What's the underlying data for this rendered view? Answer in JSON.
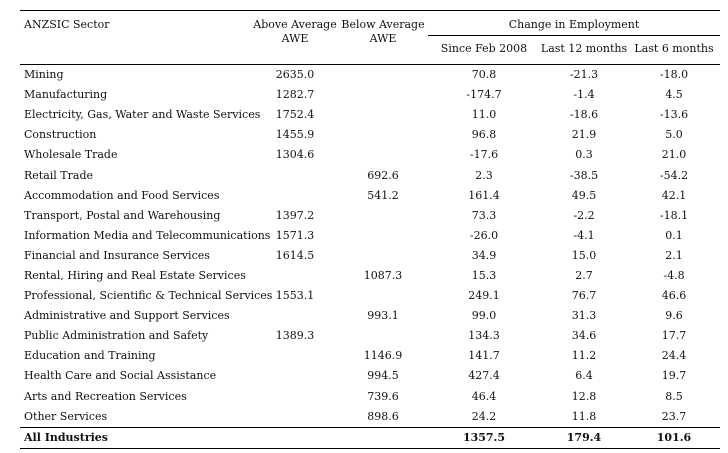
{
  "headers": {
    "sector": "ANZSIC Sector",
    "above_line1": "Above Average",
    "above_line2": "AWE",
    "below_line1": "Below Average",
    "below_line2": "AWE",
    "change": "Change in Employment",
    "since_feb": "Since Feb 2008",
    "last12": "Last 12 months",
    "last6": "Last 6 months"
  },
  "rows": [
    {
      "sector": "Mining",
      "above": "2635.0",
      "below": "",
      "feb": "70.8",
      "l12": "-21.3",
      "l6": "-18.0"
    },
    {
      "sector": "Manufacturing",
      "above": "1282.7",
      "below": "",
      "feb": "-174.7",
      "l12": "-1.4",
      "l6": "4.5"
    },
    {
      "sector": "Electricity, Gas, Water and Waste Services",
      "above": "1752.4",
      "below": "",
      "feb": "11.0",
      "l12": "-18.6",
      "l6": "-13.6"
    },
    {
      "sector": "Construction",
      "above": "1455.9",
      "below": "",
      "feb": "96.8",
      "l12": "21.9",
      "l6": "5.0"
    },
    {
      "sector": "Wholesale Trade",
      "above": "1304.6",
      "below": "",
      "feb": "-17.6",
      "l12": "0.3",
      "l6": "21.0"
    },
    {
      "sector": "Retail Trade",
      "above": "",
      "below": "692.6",
      "feb": "2.3",
      "l12": "-38.5",
      "l6": "-54.2"
    },
    {
      "sector": "Accommodation and Food Services",
      "above": "",
      "below": "541.2",
      "feb": "161.4",
      "l12": "49.5",
      "l6": "42.1"
    },
    {
      "sector": "Transport, Postal and Warehousing",
      "above": "1397.2",
      "below": "",
      "feb": "73.3",
      "l12": "-2.2",
      "l6": "-18.1"
    },
    {
      "sector": "Information Media and Telecommunications",
      "above": "1571.3",
      "below": "",
      "feb": "-26.0",
      "l12": "-4.1",
      "l6": "0.1"
    },
    {
      "sector": "Financial and Insurance Services",
      "above": "1614.5",
      "below": "",
      "feb": "34.9",
      "l12": "15.0",
      "l6": "2.1"
    },
    {
      "sector": "Rental, Hiring and Real Estate Services",
      "above": "",
      "below": "1087.3",
      "feb": "15.3",
      "l12": "2.7",
      "l6": "-4.8"
    },
    {
      "sector": "Professional, Scientific & Technical Services",
      "above": "1553.1",
      "below": "",
      "feb": "249.1",
      "l12": "76.7",
      "l6": "46.6"
    },
    {
      "sector": "Administrative and Support Services",
      "above": "",
      "below": "993.1",
      "feb": "99.0",
      "l12": "31.3",
      "l6": "9.6"
    },
    {
      "sector": "Public Administration and Safety",
      "above": "1389.3",
      "below": "",
      "feb": "134.3",
      "l12": "34.6",
      "l6": "17.7"
    },
    {
      "sector": "Education and Training",
      "above": "",
      "below": "1146.9",
      "feb": "141.7",
      "l12": "11.2",
      "l6": "24.4"
    },
    {
      "sector": "Health Care and Social Assistance",
      "above": "",
      "below": "994.5",
      "feb": "427.4",
      "l12": "6.4",
      "l6": "19.7"
    },
    {
      "sector": "Arts and Recreation Services",
      "above": "",
      "below": "739.6",
      "feb": "46.4",
      "l12": "12.8",
      "l6": "8.5"
    },
    {
      "sector": "Other Services",
      "above": "",
      "below": "898.6",
      "feb": "24.2",
      "l12": "11.8",
      "l6": "23.7"
    }
  ],
  "total": {
    "sector": "All Industries",
    "above": "",
    "below": "",
    "feb": "1357.5",
    "l12": "179.4",
    "l6": "101.6"
  }
}
